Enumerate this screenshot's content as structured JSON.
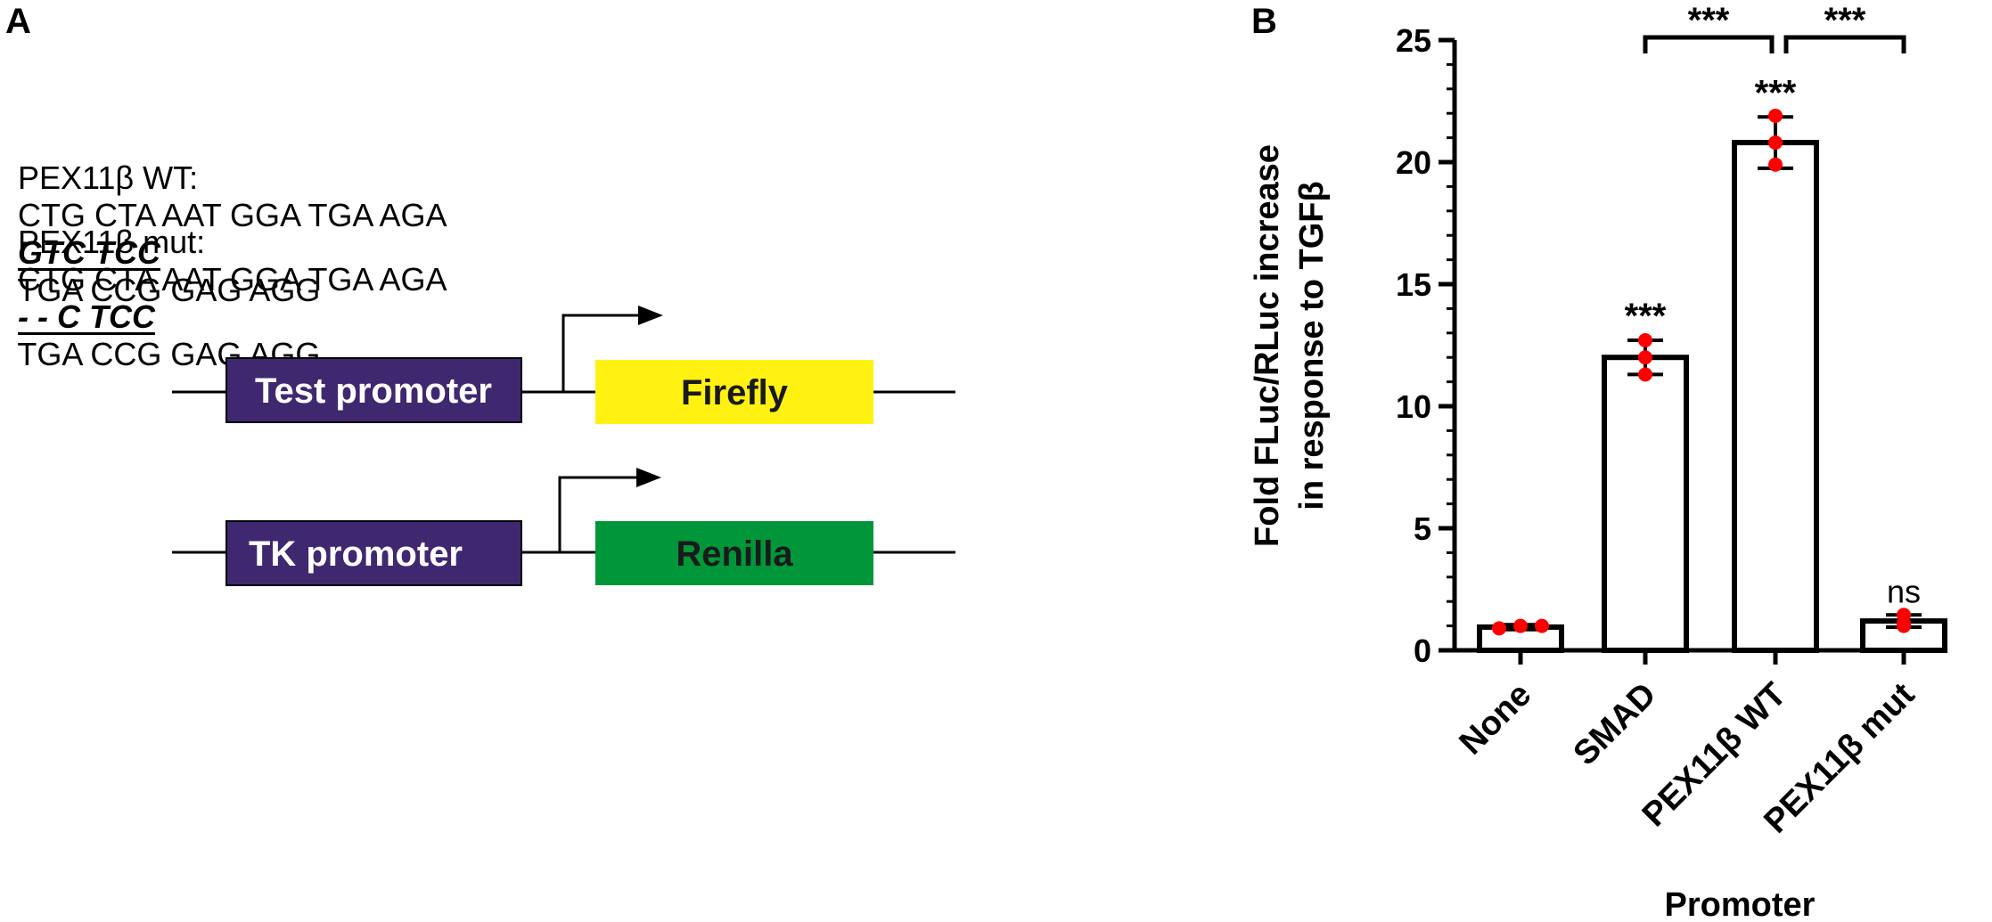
{
  "panel_a": {
    "label": "A",
    "sequences": [
      {
        "label": "PEX11β WT:",
        "prefix": "CTG CTA AAT GGA TGA AGA",
        "site": "GTC TCC",
        "suffix": "TGA CCG GAG AGG"
      },
      {
        "label": "PEX11β mut:",
        "prefix": "CTG CTA AAT GGA TGA AGA",
        "site": "- - C TCC",
        "suffix": "TGA CCG GAG AGG"
      }
    ],
    "constructs": [
      {
        "promoter": "Test promoter",
        "reporter": "Firefly",
        "promoter_color": "#3f2870",
        "reporter_color": "#fff112"
      },
      {
        "promoter": "TK promoter",
        "reporter": "Renilla",
        "promoter_color": "#3f2870",
        "reporter_color": "#009639"
      }
    ]
  },
  "panel_b": {
    "label": "B"
  },
  "chart_data": {
    "type": "bar",
    "categories": [
      "None",
      "SMAD",
      "PEX11β WT",
      "PEX11β mut"
    ],
    "values": [
      0.95,
      12.0,
      20.8,
      1.2
    ],
    "errors": [
      0.1,
      0.7,
      1.05,
      0.25
    ],
    "points": [
      [
        0.9,
        1.0,
        1.0
      ],
      [
        11.3,
        12.0,
        12.7
      ],
      [
        19.9,
        20.8,
        21.9
      ],
      [
        1.0,
        1.1,
        1.45
      ]
    ],
    "significance": [
      "",
      "***",
      "***",
      "ns"
    ],
    "comparisons": [
      {
        "from": "SMAD",
        "to": "PEX11β WT",
        "label": "***"
      },
      {
        "from": "PEX11β WT",
        "to": "PEX11β mut",
        "label": "***"
      }
    ],
    "xlabel": "Promoter",
    "ylabel_line1": "Fold FLuc/RLuc increase",
    "ylabel_line2": "in response to TGFβ",
    "ylim": [
      0,
      25
    ],
    "yticks": [
      "0",
      "5",
      "10",
      "15",
      "20",
      "25"
    ],
    "bar_color": "#ffffff",
    "point_color": "#ff0000"
  }
}
